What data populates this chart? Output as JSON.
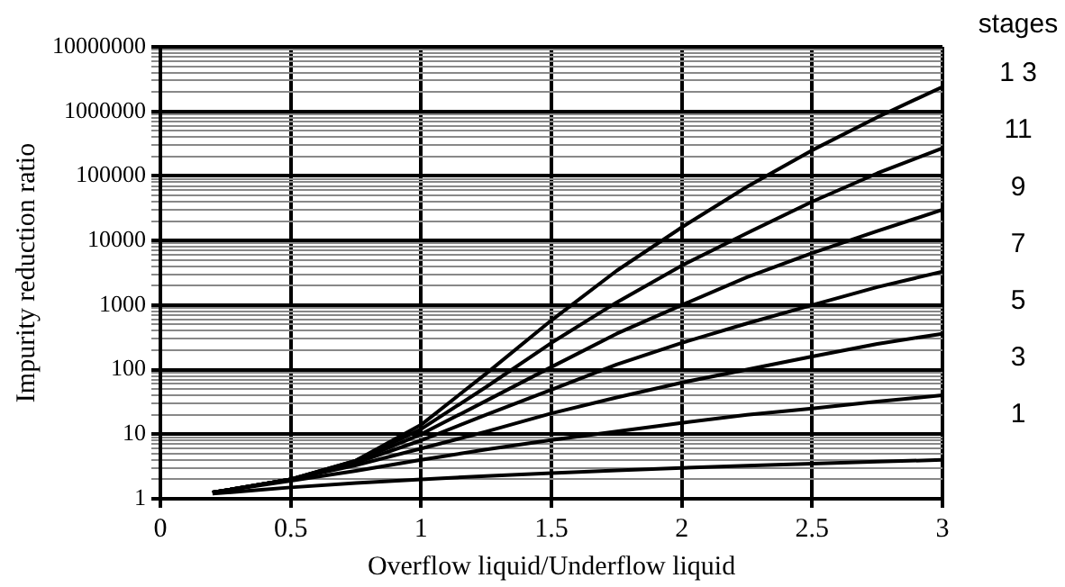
{
  "chart_data": {
    "type": "line",
    "xlabel": "Overflow liquid/Underflow liquid",
    "ylabel": "Impurity reduction ratio",
    "legend_title": "stages",
    "legend": "right",
    "log": "y",
    "grid": true,
    "marker": "none",
    "line_style": "solid",
    "x": [
      0.2,
      0.5,
      0.75,
      1,
      1.25,
      1.5,
      1.75,
      2,
      2.25,
      2.5,
      2.75,
      3
    ],
    "xlim": [
      0,
      3
    ],
    "xticks": [
      0,
      0.5,
      1,
      1.5,
      2,
      2.5,
      3
    ],
    "ylim": [
      1,
      10000000
    ],
    "yticks": [
      1,
      {
        "value": 2,
        "label": null
      },
      {
        "value": 3,
        "label": null
      },
      {
        "value": 4,
        "label": null
      },
      {
        "value": 5,
        "label": null
      },
      {
        "value": 6,
        "label": null
      },
      {
        "value": 7,
        "label": null
      },
      {
        "value": 8,
        "label": null
      },
      {
        "value": 9,
        "label": null
      },
      10,
      {
        "value": 20,
        "label": null
      },
      {
        "value": 30,
        "label": null
      },
      {
        "value": 40,
        "label": null
      },
      {
        "value": 50,
        "label": null
      },
      {
        "value": 60,
        "label": null
      },
      {
        "value": 70,
        "label": null
      },
      {
        "value": 80,
        "label": null
      },
      {
        "value": 90,
        "label": null
      },
      100,
      {
        "value": 200,
        "label": null
      },
      {
        "value": 300,
        "label": null
      },
      {
        "value": 400,
        "label": null
      },
      {
        "value": 500,
        "label": null
      },
      {
        "value": 600,
        "label": null
      },
      {
        "value": 700,
        "label": null
      },
      {
        "value": 800,
        "label": null
      },
      {
        "value": 900,
        "label": null
      },
      1000,
      {
        "value": 2000,
        "label": null
      },
      {
        "value": 3000,
        "label": null
      },
      {
        "value": 4000,
        "label": null
      },
      {
        "value": 5000,
        "label": null
      },
      {
        "value": 6000,
        "label": null
      },
      {
        "value": 7000,
        "label": null
      },
      {
        "value": 8000,
        "label": null
      },
      {
        "value": 9000,
        "label": null
      },
      10000,
      {
        "value": 20000,
        "label": null
      },
      {
        "value": 30000,
        "label": null
      },
      {
        "value": 40000,
        "label": null
      },
      {
        "value": 50000,
        "label": null
      },
      {
        "value": 60000,
        "label": null
      },
      {
        "value": 70000,
        "label": null
      },
      {
        "value": 80000,
        "label": null
      },
      {
        "value": 90000,
        "label": null
      },
      100000,
      {
        "value": 200000,
        "label": null
      },
      {
        "value": 300000,
        "label": null
      },
      {
        "value": 400000,
        "label": null
      },
      {
        "value": 500000,
        "label": null
      },
      {
        "value": 600000,
        "label": null
      },
      {
        "value": 700000,
        "label": null
      },
      {
        "value": 800000,
        "label": null
      },
      {
        "value": 900000,
        "label": null
      },
      1000000,
      {
        "value": 2000000,
        "label": null
      },
      {
        "value": 3000000,
        "label": null
      },
      {
        "value": 4000000,
        "label": null
      },
      {
        "value": 5000000,
        "label": null
      },
      {
        "value": 6000000,
        "label": null
      },
      {
        "value": 7000000,
        "label": null
      },
      {
        "value": 8000000,
        "label": null
      },
      {
        "value": 9000000,
        "label": null
      },
      10000000
    ],
    "series": [
      {
        "name": "1 3",
        "color": "#000000",
        "values": [
          1.25,
          2,
          3.9,
          14,
          87,
          580,
          3400,
          16000,
          68000,
          250000,
          810000,
          2400000
        ]
      },
      {
        "name": "11",
        "color": "#000000",
        "values": [
          1.25,
          2,
          3.9,
          12,
          54,
          260,
          1100,
          4100,
          13000,
          40000,
          110000,
          270000
        ]
      },
      {
        "name": "9",
        "color": "#000000",
        "values": [
          1.25,
          2,
          3.8,
          10,
          33,
          110,
          360,
          1000,
          2700,
          6400,
          14000,
          30000
        ]
      },
      {
        "name": "7",
        "color": "#000000",
        "values": [
          1.25,
          2,
          3.6,
          8,
          20,
          49,
          120,
          260,
          520,
          1000,
          1900,
          3300
        ]
      },
      {
        "name": "5",
        "color": "#000000",
        "values": [
          1.25,
          2,
          3.3,
          6,
          11,
          21,
          37,
          63,
          100,
          160,
          250,
          360
        ]
      },
      {
        "name": "3",
        "color": "#000000",
        "values": [
          1.25,
          1.9,
          2.7,
          4,
          5.8,
          8.1,
          11,
          15,
          20,
          25,
          32,
          40
        ]
      },
      {
        "name": "1",
        "color": "#000000",
        "values": [
          1.2,
          1.5,
          1.75,
          2,
          2.25,
          2.5,
          2.75,
          3,
          3.25,
          3.5,
          3.75,
          4
        ]
      }
    ]
  }
}
